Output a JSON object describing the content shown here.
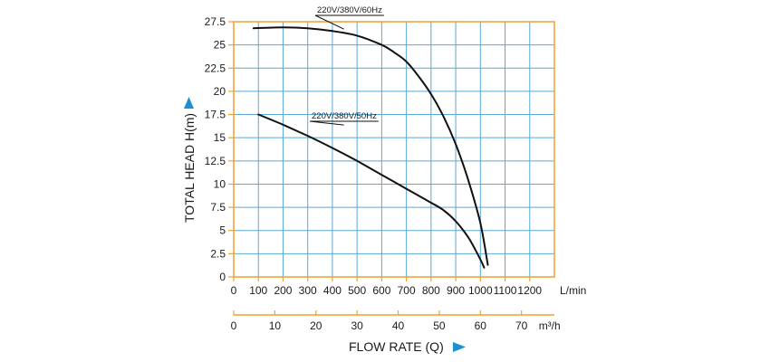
{
  "chart_data": {
    "type": "line",
    "title": "",
    "ylabel": "TOTAL HEAD H(m)",
    "xlabel": "FLOW RATE (Q)",
    "x_unit": "L/min",
    "x2_unit": "m³/h",
    "xlim": [
      0,
      1300
    ],
    "ylim": [
      0,
      27.5
    ],
    "x_ticks": [
      "0",
      "100",
      "200",
      "300",
      "400",
      "500",
      "600",
      "700",
      "800",
      "900",
      "1000",
      "1100",
      "1200"
    ],
    "x2_ticks": [
      "0",
      "10",
      "20",
      "30",
      "40",
      "50",
      "60",
      "70"
    ],
    "y_ticks": [
      "0",
      "2.5",
      "5",
      "7.5",
      "10",
      "12.5",
      "15",
      "17.5",
      "20",
      "22.5",
      "25",
      "27.5"
    ],
    "grid": true,
    "grid_color": "#5aa9d6",
    "frame_color": "#f0a030",
    "line_color": "#111111",
    "arrow_color": "#1e90d0",
    "series": [
      {
        "name": "220V/380V/60Hz",
        "x": [
          80,
          200,
          300,
          400,
          500,
          600,
          650,
          700,
          750,
          800,
          850,
          900,
          950,
          1000,
          1030
        ],
        "y": [
          26.8,
          26.9,
          26.8,
          26.5,
          26.0,
          25.0,
          24.2,
          23.2,
          21.6,
          19.7,
          17.3,
          14.3,
          10.5,
          5.8,
          1.3
        ]
      },
      {
        "name": "220V/380V/50Hz",
        "x": [
          100,
          200,
          300,
          400,
          500,
          600,
          700,
          800,
          850,
          900,
          950,
          980,
          1005,
          1015
        ],
        "y": [
          17.5,
          16.4,
          15.2,
          13.9,
          12.5,
          11.0,
          9.5,
          8.0,
          7.2,
          6.0,
          4.3,
          2.9,
          1.6,
          1.0
        ]
      }
    ]
  }
}
